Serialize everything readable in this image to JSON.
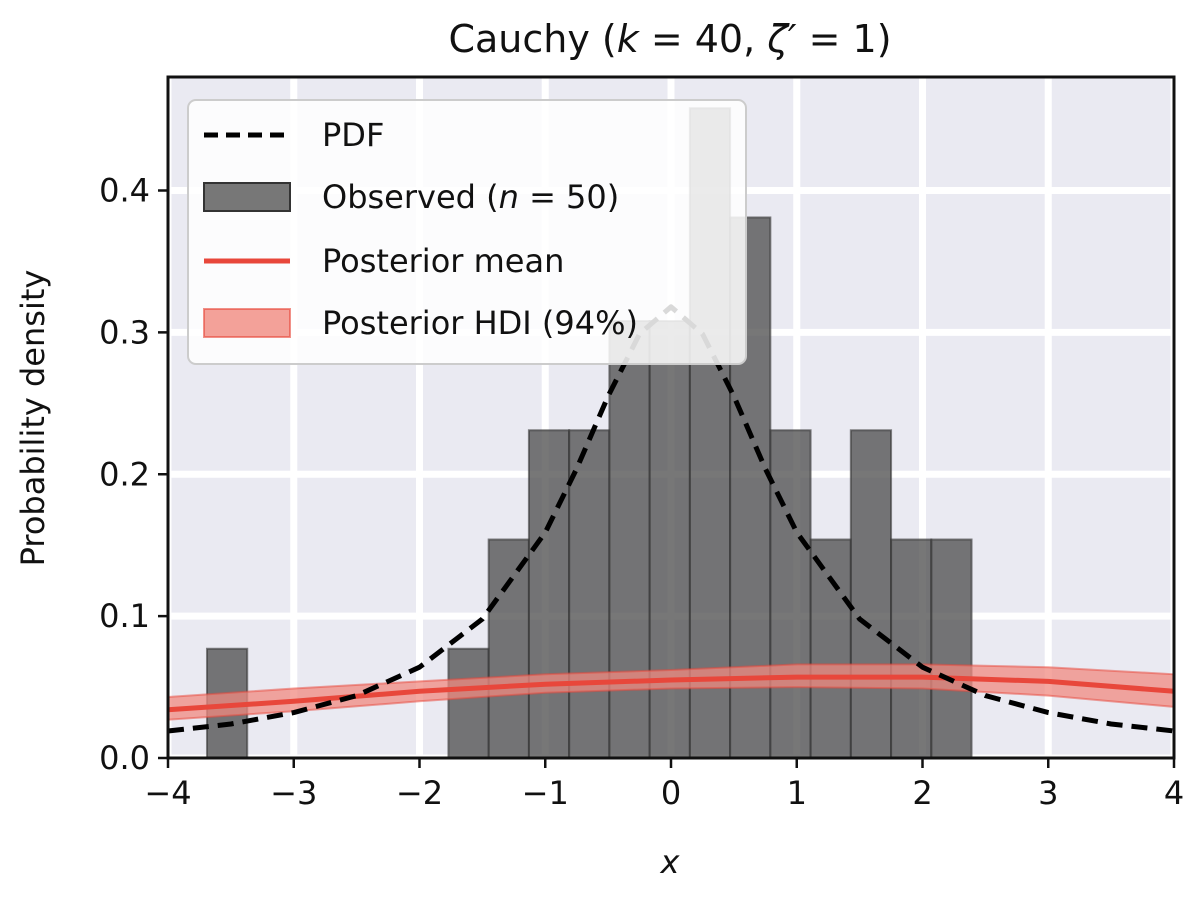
{
  "chart_data": {
    "type": "histogram",
    "title": "Cauchy (k = 40, ζ′ = 1)",
    "xlabel": "x",
    "ylabel": "Probability density",
    "xlim": [
      -4,
      4
    ],
    "ylim": [
      0,
      0.48
    ],
    "xticks": [
      -4,
      -3,
      -2,
      -1,
      0,
      1,
      2,
      3,
      4
    ],
    "xtick_labels": [
      "−4",
      "−3",
      "−2",
      "−1",
      "0",
      "1",
      "2",
      "3",
      "4"
    ],
    "yticks": [
      0.0,
      0.1,
      0.2,
      0.3,
      0.4
    ],
    "ytick_labels": [
      "0.0",
      "0.1",
      "0.2",
      "0.3",
      "0.4"
    ],
    "grid": true,
    "legend_position": "top-left",
    "colors": {
      "plot_background": "#eaeaf2",
      "grid": "#ffffff",
      "histogram": "#555555",
      "posterior": "#e8473b",
      "hdi": "#f08a80",
      "pdf": "#000000"
    },
    "legend": [
      {
        "key": "pdf",
        "label": "PDF"
      },
      {
        "key": "observed",
        "label": "Observed (n = 50)"
      },
      {
        "key": "mean",
        "label": "Posterior mean"
      },
      {
        "key": "hdi",
        "label": "Posterior HDI (94%)"
      }
    ],
    "histogram": {
      "bins": [
        {
          "x0": -3.69,
          "x1": -3.37,
          "density": 0.077
        },
        {
          "x0": -1.77,
          "x1": -1.45,
          "density": 0.077
        },
        {
          "x0": -1.45,
          "x1": -1.13,
          "density": 0.154
        },
        {
          "x0": -1.13,
          "x1": -0.81,
          "density": 0.231
        },
        {
          "x0": -0.81,
          "x1": -0.49,
          "density": 0.231
        },
        {
          "x0": -0.49,
          "x1": -0.17,
          "density": 0.308
        },
        {
          "x0": -0.17,
          "x1": 0.15,
          "density": 0.308
        },
        {
          "x0": 0.15,
          "x1": 0.47,
          "density": 0.458
        },
        {
          "x0": 0.47,
          "x1": 0.79,
          "density": 0.381
        },
        {
          "x0": 0.79,
          "x1": 1.11,
          "density": 0.231
        },
        {
          "x0": 1.11,
          "x1": 1.43,
          "density": 0.154
        },
        {
          "x0": 1.43,
          "x1": 1.75,
          "density": 0.231
        },
        {
          "x0": 1.75,
          "x1": 2.07,
          "density": 0.154
        },
        {
          "x0": 2.07,
          "x1": 2.39,
          "density": 0.154
        }
      ]
    },
    "pdf": {
      "x": [
        -4.0,
        -3.5,
        -3.0,
        -2.5,
        -2.0,
        -1.5,
        -1.0,
        -0.75,
        -0.5,
        -0.25,
        0.0,
        0.25,
        0.5,
        0.75,
        1.0,
        1.5,
        2.0,
        2.5,
        3.0,
        3.5,
        4.0
      ],
      "y": [
        0.019,
        0.024,
        0.032,
        0.044,
        0.064,
        0.098,
        0.159,
        0.204,
        0.255,
        0.299,
        0.318,
        0.299,
        0.255,
        0.204,
        0.159,
        0.098,
        0.064,
        0.044,
        0.032,
        0.024,
        0.019
      ]
    },
    "posterior_mean": {
      "x": [
        -4.0,
        -3.0,
        -2.0,
        -1.0,
        0.0,
        1.0,
        2.0,
        3.0,
        4.0
      ],
      "y": [
        0.034,
        0.04,
        0.047,
        0.052,
        0.055,
        0.057,
        0.057,
        0.054,
        0.047
      ]
    },
    "posterior_hdi": {
      "x": [
        -4.0,
        -3.0,
        -2.0,
        -1.0,
        0.0,
        1.0,
        2.0,
        3.0,
        4.0
      ],
      "lower": [
        0.027,
        0.033,
        0.04,
        0.046,
        0.049,
        0.05,
        0.049,
        0.044,
        0.036
      ],
      "upper": [
        0.043,
        0.049,
        0.054,
        0.059,
        0.062,
        0.066,
        0.066,
        0.064,
        0.059
      ]
    }
  }
}
